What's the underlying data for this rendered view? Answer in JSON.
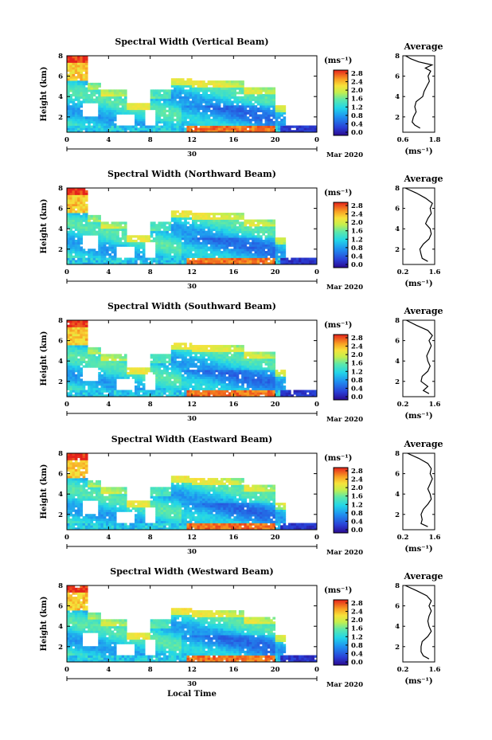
{
  "chart_data": [
    {
      "type": "heatmap",
      "title": "Spectral Width (Vertical Beam)",
      "ylabel": "Height (km)",
      "x_ticks": [
        "0",
        "4",
        "8",
        "12",
        "16",
        "20",
        "0"
      ],
      "y_ticks": [
        "2",
        "4",
        "6",
        "8"
      ],
      "day_label": "30",
      "month_label": "Mar 2020",
      "colorbar_unit": "(ms⁻¹)",
      "colorbar_ticks": [
        "0.0",
        "0.4",
        "0.8",
        "1.2",
        "1.6",
        "2.0",
        "2.4",
        "2.8"
      ],
      "profile": {
        "title": "Average",
        "xlabel": "(ms⁻¹)",
        "x_ticks": [
          "0.6",
          "1.8"
        ],
        "y_ticks": [
          "2",
          "4",
          "6",
          "8"
        ],
        "xlim": [
          0.6,
          1.8
        ],
        "ylim": [
          0.5,
          8
        ],
        "height": [
          0.9,
          1.2,
          1.5,
          2.0,
          2.5,
          3.0,
          3.5,
          4.0,
          4.5,
          5.0,
          5.5,
          6.0,
          6.5,
          6.8,
          7.1,
          7.4,
          7.7,
          8.0
        ],
        "width": [
          1.25,
          1.05,
          0.95,
          1.0,
          1.1,
          1.05,
          1.1,
          1.35,
          1.4,
          1.5,
          1.6,
          1.55,
          1.65,
          1.45,
          1.7,
          1.2,
          0.9,
          0.7
        ]
      }
    },
    {
      "type": "heatmap",
      "title": "Spectral Width (Northward Beam)",
      "ylabel": "Height (km)",
      "x_ticks": [
        "0",
        "4",
        "8",
        "12",
        "16",
        "20",
        "0"
      ],
      "y_ticks": [
        "2",
        "4",
        "6",
        "8"
      ],
      "day_label": "30",
      "month_label": "Mar 2020",
      "colorbar_unit": "(ms⁻¹)",
      "colorbar_ticks": [
        "0.0",
        "0.4",
        "0.8",
        "1.2",
        "1.6",
        "2.0",
        "2.4",
        "2.8"
      ],
      "profile": {
        "title": "Average",
        "xlabel": "(ms⁻¹)",
        "x_ticks": [
          "0.2",
          "1.6"
        ],
        "y_ticks": [
          "2",
          "4",
          "6",
          "8"
        ],
        "xlim": [
          0.2,
          1.6
        ],
        "ylim": [
          0.5,
          8
        ],
        "height": [
          0.8,
          1.1,
          1.5,
          2.0,
          2.5,
          3.0,
          3.5,
          4.0,
          4.5,
          5.0,
          5.5,
          6.0,
          6.5,
          7.0,
          7.5,
          8.0
        ],
        "width": [
          1.3,
          1.05,
          1.0,
          0.95,
          1.1,
          1.35,
          1.45,
          1.4,
          1.2,
          1.3,
          1.45,
          1.4,
          1.5,
          1.2,
          0.8,
          0.3
        ]
      }
    },
    {
      "type": "heatmap",
      "title": "Spectral Width (Southward Beam)",
      "ylabel": "Height (km)",
      "x_ticks": [
        "0",
        "4",
        "8",
        "12",
        "16",
        "20",
        "0"
      ],
      "y_ticks": [
        "2",
        "4",
        "6",
        "8"
      ],
      "day_label": "30",
      "month_label": "Mar 2020",
      "colorbar_unit": "(ms⁻¹)",
      "colorbar_ticks": [
        "0.0",
        "0.4",
        "0.8",
        "1.2",
        "1.6",
        "2.0",
        "2.4",
        "2.8"
      ],
      "profile": {
        "title": "Average",
        "xlabel": "(ms⁻¹)",
        "x_ticks": [
          "0.2",
          "1.6"
        ],
        "y_ticks": [
          "2",
          "4",
          "6",
          "8"
        ],
        "xlim": [
          0.2,
          1.6
        ],
        "ylim": [
          0.5,
          8
        ],
        "height": [
          0.8,
          1.1,
          1.5,
          2.0,
          2.5,
          3.0,
          3.5,
          4.0,
          4.5,
          5.0,
          5.5,
          6.0,
          6.5,
          7.0,
          7.5,
          8.0
        ],
        "width": [
          1.35,
          1.1,
          1.3,
          1.0,
          1.05,
          1.3,
          1.4,
          1.3,
          1.25,
          1.35,
          1.45,
          1.35,
          1.5,
          1.3,
          0.8,
          0.35
        ]
      }
    },
    {
      "type": "heatmap",
      "title": "Spectral Width (Eastward Beam)",
      "ylabel": "Height (km)",
      "x_ticks": [
        "0",
        "4",
        "8",
        "12",
        "16",
        "20",
        "0"
      ],
      "y_ticks": [
        "2",
        "4",
        "6",
        "8"
      ],
      "day_label": "30",
      "month_label": "Mar 2020",
      "colorbar_unit": "(ms⁻¹)",
      "colorbar_ticks": [
        "0.0",
        "0.4",
        "0.8",
        "1.2",
        "1.6",
        "2.0",
        "2.4",
        "2.8"
      ],
      "profile": {
        "title": "Average",
        "xlabel": "(ms⁻¹)",
        "x_ticks": [
          "0.2",
          "1.6"
        ],
        "y_ticks": [
          "2",
          "4",
          "6",
          "8"
        ],
        "xlim": [
          0.2,
          1.6
        ],
        "ylim": [
          0.5,
          8
        ],
        "height": [
          0.8,
          1.1,
          1.5,
          2.0,
          2.5,
          3.0,
          3.5,
          4.0,
          4.5,
          5.0,
          5.5,
          6.0,
          6.5,
          7.0,
          7.5,
          8.0
        ],
        "width": [
          1.3,
          1.0,
          1.05,
          1.0,
          1.1,
          1.3,
          1.45,
          1.4,
          1.3,
          1.4,
          1.5,
          1.4,
          1.45,
          1.3,
          0.9,
          0.4
        ]
      }
    },
    {
      "type": "heatmap",
      "title": "Spectral Width (Westward Beam)",
      "ylabel": "Height (km)",
      "x_ticks": [
        "0",
        "4",
        "8",
        "12",
        "16",
        "20",
        "0"
      ],
      "y_ticks": [
        "2",
        "4",
        "6",
        "8"
      ],
      "day_label": "30",
      "month_label": "Mar 2020",
      "xlabel": "Local Time",
      "colorbar_unit": "(ms⁻¹)",
      "colorbar_ticks": [
        "0.0",
        "0.4",
        "0.8",
        "1.2",
        "1.6",
        "2.0",
        "2.4",
        "2.8"
      ],
      "profile": {
        "title": "Average",
        "xlabel": "(ms⁻¹)",
        "x_ticks": [
          "0.2",
          "1.6"
        ],
        "y_ticks": [
          "2",
          "4",
          "6",
          "8"
        ],
        "xlim": [
          0.2,
          1.6
        ],
        "ylim": [
          0.5,
          8
        ],
        "height": [
          0.8,
          1.1,
          1.5,
          2.0,
          2.5,
          3.0,
          3.5,
          4.0,
          4.5,
          5.0,
          5.5,
          6.0,
          6.5,
          7.0,
          7.5,
          8.0
        ],
        "width": [
          1.35,
          1.1,
          1.0,
          1.0,
          1.05,
          1.3,
          1.45,
          1.35,
          1.3,
          1.35,
          1.45,
          1.35,
          1.45,
          1.25,
          0.8,
          0.3
        ]
      }
    }
  ]
}
